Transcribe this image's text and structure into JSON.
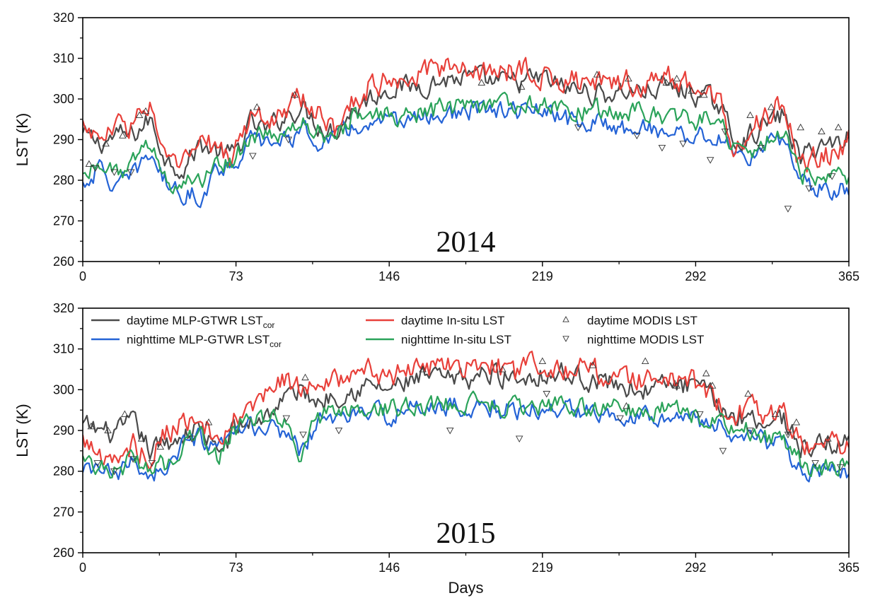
{
  "chart_data": [
    {
      "type": "line",
      "title": "2014",
      "xlabel": "",
      "ylabel": "LST (K)",
      "xlim": [
        0,
        365
      ],
      "ylim": [
        260,
        320
      ],
      "xticks": [
        "0",
        "73",
        "146",
        "219",
        "292",
        "365"
      ],
      "yticks": [
        "260",
        "270",
        "280",
        "290",
        "300",
        "310",
        "320"
      ],
      "series": [
        {
          "name": "daytime MLP-GTWR LSTcor",
          "color": "#4a4a4a",
          "x": [
            0,
            8,
            16,
            24,
            32,
            40,
            48,
            56,
            64,
            72,
            80,
            88,
            96,
            104,
            112,
            120,
            128,
            136,
            146,
            156,
            166,
            176,
            186,
            196,
            206,
            219,
            228,
            238,
            248,
            258,
            268,
            278,
            288,
            298,
            304,
            310,
            318,
            326,
            334,
            342,
            350,
            358,
            365
          ],
          "values": [
            291,
            289,
            291,
            291,
            295,
            285,
            283,
            289,
            287,
            286,
            294,
            292,
            296,
            298,
            294,
            292,
            297,
            300,
            303,
            303,
            304,
            305,
            305,
            304,
            304,
            305,
            303,
            302,
            301,
            302,
            302,
            303,
            302,
            300,
            298,
            290,
            291,
            294,
            296,
            285,
            289,
            289,
            291
          ]
        },
        {
          "name": "nighttime MLP-GTWR LSTcor",
          "color": "#2463d6",
          "x": [
            0,
            8,
            16,
            24,
            32,
            40,
            48,
            56,
            64,
            72,
            80,
            88,
            96,
            104,
            112,
            120,
            128,
            136,
            146,
            156,
            166,
            176,
            186,
            196,
            206,
            219,
            228,
            238,
            248,
            258,
            268,
            278,
            288,
            298,
            304,
            310,
            318,
            326,
            334,
            342,
            350,
            358,
            365
          ],
          "values": [
            279,
            283,
            278,
            281,
            287,
            279,
            277,
            276,
            283,
            284,
            290,
            289,
            290,
            292,
            290,
            290,
            293,
            293,
            294,
            295,
            296,
            296,
            297,
            297,
            297,
            297,
            295,
            294,
            294,
            293,
            293,
            292,
            291,
            291,
            290,
            287,
            286,
            288,
            290,
            281,
            278,
            278,
            278
          ]
        },
        {
          "name": "daytime In-situ LST",
          "color": "#e8403a",
          "x": [
            0,
            8,
            16,
            24,
            32,
            40,
            48,
            56,
            64,
            72,
            80,
            88,
            96,
            104,
            112,
            120,
            128,
            136,
            146,
            156,
            166,
            176,
            186,
            196,
            206,
            219,
            228,
            238,
            248,
            258,
            268,
            278,
            288,
            298,
            304,
            310,
            318,
            326,
            334,
            342,
            350,
            358,
            365
          ],
          "values": [
            294,
            290,
            293,
            294,
            299,
            283,
            284,
            290,
            287,
            286,
            296,
            294,
            298,
            300,
            296,
            293,
            299,
            303,
            305,
            306,
            307,
            307,
            308,
            306,
            307,
            306,
            305,
            304,
            303,
            304,
            304,
            305,
            304,
            301,
            299,
            290,
            293,
            296,
            299,
            283,
            286,
            286,
            290
          ]
        },
        {
          "name": "nighttime In-situ LST",
          "color": "#2ba35a",
          "x": [
            0,
            8,
            16,
            24,
            32,
            40,
            48,
            56,
            64,
            72,
            80,
            88,
            96,
            104,
            112,
            120,
            128,
            136,
            146,
            156,
            166,
            176,
            186,
            196,
            206,
            219,
            228,
            238,
            248,
            258,
            268,
            278,
            288,
            298,
            304,
            310,
            318,
            326,
            334,
            342,
            350,
            358,
            365
          ],
          "values": [
            281,
            285,
            282,
            284,
            289,
            280,
            279,
            280,
            284,
            285,
            291,
            290,
            292,
            294,
            292,
            291,
            295,
            296,
            296,
            296,
            297,
            298,
            298,
            298,
            299,
            299,
            298,
            297,
            297,
            297,
            297,
            296,
            295,
            295,
            295,
            288,
            287,
            290,
            292,
            282,
            280,
            281,
            280
          ]
        }
      ],
      "markers": [
        {
          "name": "daytime MODIS LST",
          "symbol": "triangle-up",
          "x": [
            3,
            11,
            19,
            27,
            30,
            83,
            101,
            190,
            209,
            245,
            260,
            278,
            283,
            290,
            296,
            318,
            328,
            342,
            352,
            360
          ],
          "values": [
            284,
            289,
            291,
            296,
            297,
            298,
            301,
            304,
            303,
            306,
            305,
            304,
            305,
            302,
            301,
            296,
            298,
            293,
            292,
            293
          ]
        },
        {
          "name": "nighttime MODIS LST",
          "symbol": "triangle-down",
          "x": [
            6,
            15,
            23,
            81,
            98,
            236,
            264,
            276,
            286,
            299,
            306,
            323,
            336,
            346,
            357
          ],
          "values": [
            283,
            282,
            282,
            286,
            290,
            293,
            291,
            288,
            289,
            285,
            292,
            288,
            273,
            278,
            281
          ]
        }
      ]
    },
    {
      "type": "line",
      "title": "2015",
      "xlabel": "Days",
      "ylabel": "LST (K)",
      "xlim": [
        0,
        365
      ],
      "ylim": [
        260,
        320
      ],
      "xticks": [
        "0",
        "73",
        "146",
        "219",
        "292",
        "365"
      ],
      "yticks": [
        "260",
        "270",
        "280",
        "290",
        "300",
        "310",
        "320"
      ],
      "series": [
        {
          "name": "daytime MLP-GTWR LSTcor",
          "color": "#4a4a4a",
          "x": [
            0,
            8,
            16,
            24,
            32,
            40,
            48,
            56,
            64,
            72,
            80,
            88,
            96,
            104,
            112,
            120,
            128,
            136,
            146,
            156,
            166,
            176,
            186,
            196,
            206,
            219,
            228,
            238,
            248,
            258,
            268,
            278,
            288,
            298,
            304,
            310,
            318,
            326,
            334,
            342,
            350,
            358,
            365
          ],
          "values": [
            291,
            290,
            289,
            292,
            285,
            287,
            289,
            291,
            284,
            290,
            292,
            294,
            298,
            300,
            297,
            299,
            300,
            301,
            300,
            302,
            303,
            302,
            303,
            304,
            303,
            304,
            304,
            303,
            302,
            301,
            300,
            301,
            301,
            299,
            296,
            293,
            294,
            292,
            293,
            286,
            286,
            287,
            287
          ]
        },
        {
          "name": "nighttime MLP-GTWR LSTcor",
          "color": "#2463d6",
          "x": [
            0,
            8,
            16,
            24,
            32,
            40,
            48,
            56,
            64,
            72,
            80,
            88,
            96,
            104,
            112,
            120,
            128,
            136,
            146,
            156,
            166,
            176,
            186,
            196,
            206,
            219,
            228,
            238,
            248,
            258,
            268,
            278,
            288,
            298,
            304,
            310,
            318,
            326,
            334,
            342,
            350,
            358,
            365
          ],
          "values": [
            279,
            281,
            278,
            283,
            279,
            281,
            286,
            288,
            284,
            289,
            291,
            290,
            290,
            285,
            292,
            293,
            294,
            294,
            294,
            295,
            296,
            296,
            296,
            295,
            295,
            295,
            295,
            295,
            295,
            294,
            294,
            294,
            293,
            292,
            291,
            289,
            289,
            287,
            286,
            281,
            279,
            280,
            279
          ]
        },
        {
          "name": "daytime In-situ LST",
          "color": "#e8403a",
          "x": [
            0,
            8,
            16,
            24,
            32,
            40,
            48,
            56,
            64,
            72,
            80,
            88,
            96,
            104,
            112,
            120,
            128,
            136,
            146,
            156,
            166,
            176,
            186,
            196,
            206,
            219,
            228,
            238,
            248,
            258,
            268,
            278,
            288,
            298,
            304,
            310,
            318,
            326,
            334,
            342,
            350,
            358,
            365
          ],
          "values": [
            288,
            284,
            281,
            287,
            283,
            290,
            292,
            294,
            285,
            292,
            295,
            299,
            302,
            301,
            300,
            302,
            303,
            305,
            302,
            305,
            306,
            305,
            306,
            306,
            304,
            307,
            306,
            305,
            304,
            303,
            302,
            303,
            302,
            300,
            297,
            294,
            295,
            293,
            294,
            287,
            286,
            288,
            285
          ]
        },
        {
          "name": "nighttime In-situ LST",
          "color": "#2ba35a",
          "x": [
            0,
            8,
            16,
            24,
            32,
            40,
            48,
            56,
            64,
            72,
            80,
            88,
            96,
            104,
            112,
            120,
            128,
            136,
            146,
            156,
            166,
            176,
            186,
            196,
            206,
            219,
            228,
            238,
            248,
            258,
            268,
            278,
            288,
            298,
            304,
            310,
            318,
            326,
            334,
            342,
            350,
            358,
            365
          ],
          "values": [
            283,
            282,
            279,
            284,
            280,
            282,
            287,
            289,
            283,
            290,
            292,
            293,
            292,
            284,
            293,
            295,
            295,
            295,
            295,
            296,
            296,
            297,
            297,
            296,
            296,
            296,
            296,
            296,
            296,
            295,
            295,
            295,
            294,
            293,
            293,
            290,
            290,
            288,
            287,
            282,
            280,
            281,
            282
          ]
        }
      ],
      "markers": [
        {
          "name": "daytime MODIS LST",
          "symbol": "triangle-up",
          "x": [
            4,
            12,
            20,
            28,
            37,
            60,
            106,
            162,
            200,
            219,
            243,
            259,
            268,
            283,
            297,
            300,
            317,
            330,
            340,
            355
          ],
          "values": [
            291,
            290,
            294,
            288,
            286,
            292,
            303,
            305,
            305,
            307,
            306,
            296,
            307,
            301,
            304,
            301,
            299,
            294,
            292,
            288
          ]
        },
        {
          "name": "nighttime MODIS LST",
          "symbol": "triangle-down",
          "x": [
            7,
            15,
            24,
            33,
            52,
            97,
            105,
            122,
            175,
            208,
            221,
            256,
            294,
            305,
            318,
            336,
            349,
            361
          ],
          "values": [
            282,
            280,
            283,
            282,
            288,
            293,
            289,
            290,
            290,
            288,
            299,
            293,
            294,
            285,
            290,
            289,
            282,
            281
          ]
        }
      ]
    }
  ],
  "legend": [
    {
      "base": "daytime MLP-GTWR LST",
      "sub": "cor",
      "color": "#4a4a4a",
      "kind": "line"
    },
    {
      "base": "daytime In-situ LST",
      "sub": "",
      "color": "#e8403a",
      "kind": "line"
    },
    {
      "base": "daytime MODIS LST",
      "sub": "",
      "color": "#555555",
      "kind": "triangle-up"
    },
    {
      "base": "nighttime MLP-GTWR LST",
      "sub": "cor",
      "color": "#2463d6",
      "kind": "line"
    },
    {
      "base": "nighttime In-situ LST",
      "sub": "",
      "color": "#2ba35a",
      "kind": "line"
    },
    {
      "base": "nighttime MODIS LST",
      "sub": "",
      "color": "#555555",
      "kind": "triangle-down"
    }
  ]
}
